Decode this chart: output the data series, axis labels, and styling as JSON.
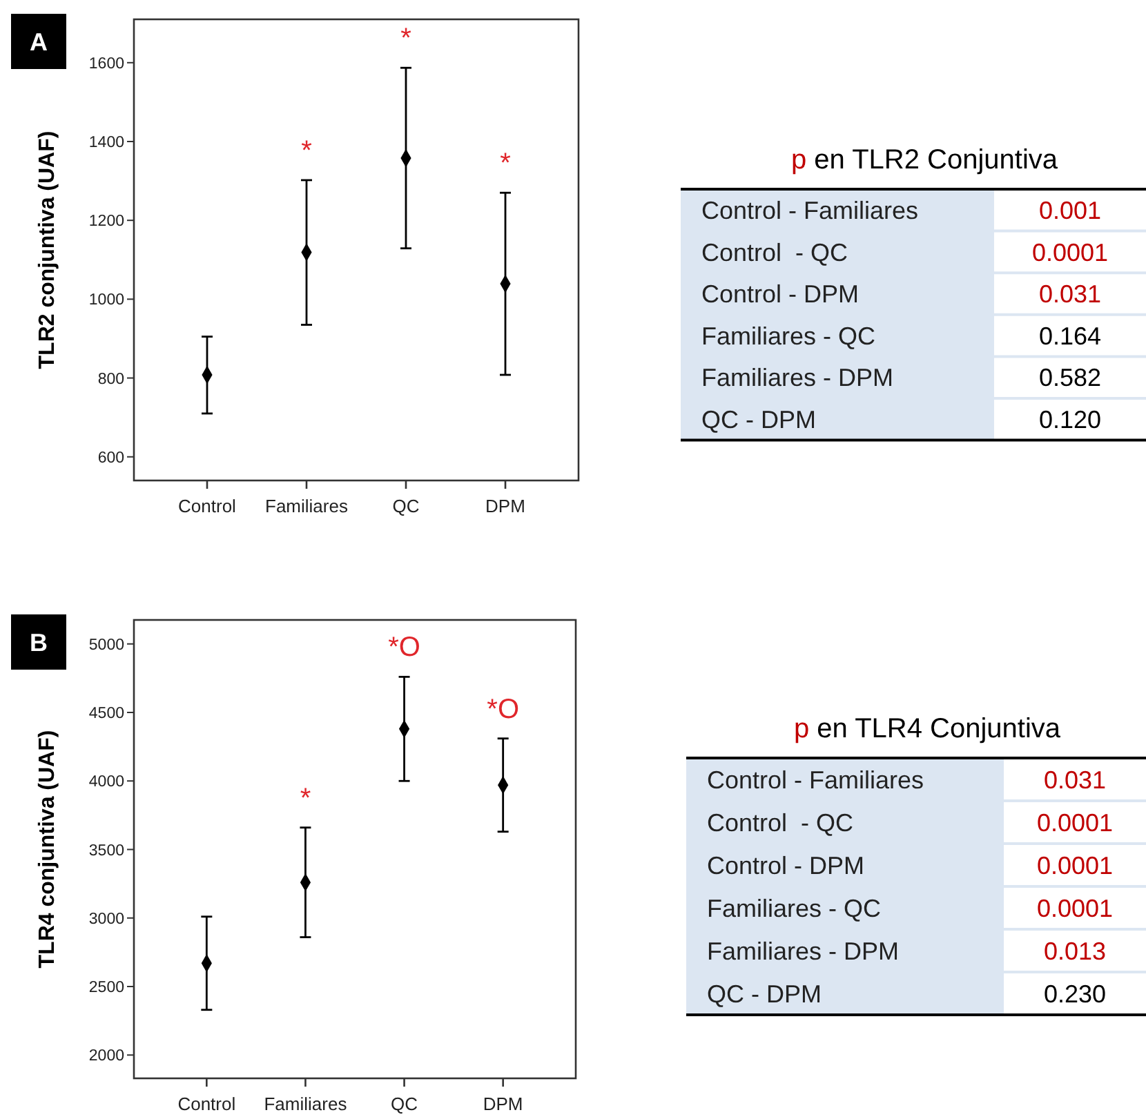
{
  "chart_data": [
    {
      "type": "scatter",
      "categories": [
        "Control",
        "Familiares",
        "QC",
        "DPM"
      ],
      "values": [
        808,
        1119,
        1358,
        1039
      ],
      "errors": [
        [
          710,
          905
        ],
        [
          935,
          1302
        ],
        [
          1129,
          1587
        ],
        [
          808,
          1270
        ]
      ],
      "color": "#000000",
      "marker": "diamond",
      "ylabel": "TLR2 conjuntiva (UAF)",
      "ylim": [
        540,
        1710
      ],
      "yticks": [
        600,
        800,
        1000,
        1200,
        1400,
        1600
      ],
      "annotations": [
        "A",
        "*",
        "*",
        "*"
      ]
    },
    {
      "type": "other",
      "title": "p en TLR2 Conjuntiva",
      "categories": [
        "Control - Familiares",
        "Control  - QC",
        "Control - DPM",
        "Familiares - QC",
        "Familiares - DPM",
        "QC - DPM"
      ],
      "values": [
        0.001,
        0.0001,
        0.031,
        0.164,
        0.582,
        0.12
      ],
      "value_labels": [
        "0.001",
        "0.0001",
        "0.031",
        "0.164",
        "0.582",
        "0.120"
      ],
      "colors": [
        "#c00000",
        "#c00000",
        "#c00000",
        "#000000",
        "#000000",
        "#000000"
      ]
    },
    {
      "type": "scatter",
      "categories": [
        "Control",
        "Familiares",
        "QC",
        "DPM"
      ],
      "values": [
        2670,
        3260,
        4380,
        3970
      ],
      "errors": [
        [
          2330,
          3010
        ],
        [
          2860,
          3660
        ],
        [
          4000,
          4760
        ],
        [
          3630,
          4310
        ]
      ],
      "color": "#000000",
      "marker": "diamond",
      "ylabel": "TLR4 conjuntiva (UAF)",
      "ylim": [
        1830,
        5175
      ],
      "yticks": [
        2000,
        2500,
        3000,
        3500,
        4000,
        4500,
        5000
      ],
      "annotations": [
        "B",
        "*",
        "*O",
        "*O"
      ]
    },
    {
      "type": "other",
      "title": "p en TLR4 Conjuntiva",
      "categories": [
        "Control - Familiares",
        "Control  - QC",
        "Control - DPM",
        "Familiares - QC",
        "Familiares - DPM",
        "QC - DPM"
      ],
      "values": [
        0.031,
        0.0001,
        0.0001,
        0.0001,
        0.013,
        0.23
      ],
      "value_labels": [
        "0.031",
        "0.0001",
        "0.0001",
        "0.0001",
        "0.013",
        "0.230"
      ],
      "colors": [
        "#c00000",
        "#c00000",
        "#c00000",
        "#c00000",
        "#c00000",
        "#000000"
      ]
    }
  ]
}
